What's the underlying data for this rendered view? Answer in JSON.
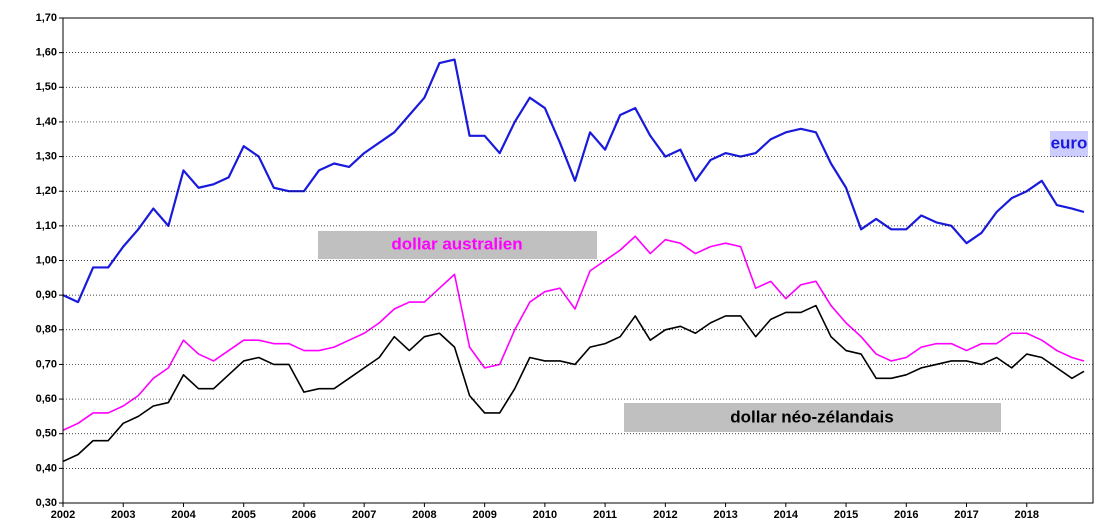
{
  "chart_data": {
    "type": "line",
    "x": [
      2002,
      2002.25,
      2002.5,
      2002.75,
      2003,
      2003.25,
      2003.5,
      2003.75,
      2004,
      2004.25,
      2004.5,
      2004.75,
      2005,
      2005.25,
      2005.5,
      2005.75,
      2006,
      2006.25,
      2006.5,
      2006.75,
      2007,
      2007.25,
      2007.5,
      2007.75,
      2008,
      2008.25,
      2008.5,
      2008.75,
      2009,
      2009.25,
      2009.5,
      2009.75,
      2010,
      2010.25,
      2010.5,
      2010.75,
      2011,
      2011.25,
      2011.5,
      2011.75,
      2012,
      2012.25,
      2012.5,
      2012.75,
      2013,
      2013.25,
      2013.5,
      2013.75,
      2014,
      2014.25,
      2014.5,
      2014.75,
      2015,
      2015.25,
      2015.5,
      2015.75,
      2016,
      2016.25,
      2016.5,
      2016.75,
      2017,
      2017.25,
      2017.5,
      2017.75,
      2018,
      2018.25,
      2018.5,
      2018.75,
      2018.95
    ],
    "series": [
      {
        "name": "euro",
        "color": "#1a1adc",
        "values": [
          0.9,
          0.88,
          0.98,
          0.98,
          1.04,
          1.09,
          1.15,
          1.1,
          1.26,
          1.21,
          1.22,
          1.24,
          1.33,
          1.3,
          1.21,
          1.2,
          1.2,
          1.26,
          1.28,
          1.27,
          1.31,
          1.34,
          1.37,
          1.42,
          1.47,
          1.57,
          1.58,
          1.36,
          1.36,
          1.31,
          1.4,
          1.47,
          1.44,
          1.34,
          1.23,
          1.37,
          1.32,
          1.42,
          1.44,
          1.36,
          1.3,
          1.32,
          1.23,
          1.29,
          1.31,
          1.3,
          1.31,
          1.35,
          1.37,
          1.38,
          1.37,
          1.28,
          1.21,
          1.09,
          1.12,
          1.09,
          1.09,
          1.13,
          1.11,
          1.1,
          1.05,
          1.08,
          1.14,
          1.18,
          1.2,
          1.23,
          1.16,
          1.15,
          1.14
        ]
      },
      {
        "name": "dollar australien",
        "color": "#ff00ff",
        "values": [
          0.51,
          0.53,
          0.56,
          0.56,
          0.58,
          0.61,
          0.66,
          0.69,
          0.77,
          0.73,
          0.71,
          0.74,
          0.77,
          0.77,
          0.76,
          0.76,
          0.74,
          0.74,
          0.75,
          0.77,
          0.79,
          0.82,
          0.86,
          0.88,
          0.88,
          0.92,
          0.96,
          0.75,
          0.69,
          0.7,
          0.8,
          0.88,
          0.91,
          0.92,
          0.86,
          0.97,
          1.0,
          1.03,
          1.07,
          1.02,
          1.06,
          1.05,
          1.02,
          1.04,
          1.05,
          1.04,
          0.92,
          0.94,
          0.89,
          0.93,
          0.94,
          0.87,
          0.82,
          0.78,
          0.73,
          0.71,
          0.72,
          0.75,
          0.76,
          0.76,
          0.74,
          0.76,
          0.76,
          0.79,
          0.79,
          0.77,
          0.74,
          0.72,
          0.71
        ]
      },
      {
        "name": "dollar néo-zélandais",
        "color": "#000000",
        "values": [
          0.42,
          0.44,
          0.48,
          0.48,
          0.53,
          0.55,
          0.58,
          0.59,
          0.67,
          0.63,
          0.63,
          0.67,
          0.71,
          0.72,
          0.7,
          0.7,
          0.62,
          0.63,
          0.63,
          0.66,
          0.69,
          0.72,
          0.78,
          0.74,
          0.78,
          0.79,
          0.75,
          0.61,
          0.56,
          0.56,
          0.63,
          0.72,
          0.71,
          0.71,
          0.7,
          0.75,
          0.76,
          0.78,
          0.84,
          0.77,
          0.8,
          0.81,
          0.79,
          0.82,
          0.84,
          0.84,
          0.78,
          0.83,
          0.85,
          0.85,
          0.87,
          0.78,
          0.74,
          0.73,
          0.66,
          0.66,
          0.67,
          0.69,
          0.7,
          0.71,
          0.71,
          0.7,
          0.72,
          0.69,
          0.73,
          0.72,
          0.69,
          0.66,
          0.68
        ]
      }
    ],
    "xlim": [
      2002,
      2019.1
    ],
    "xticks": [
      2002,
      2003,
      2004,
      2005,
      2006,
      2007,
      2008,
      2009,
      2010,
      2011,
      2012,
      2013,
      2014,
      2015,
      2016,
      2017,
      2018
    ],
    "ylim": [
      0.3,
      1.7
    ],
    "yticks": [
      {
        "value": 0.3,
        "label": "0,30"
      },
      {
        "value": 0.4,
        "label": "0,40"
      },
      {
        "value": 0.5,
        "label": "0,50"
      },
      {
        "value": 0.6,
        "label": "0,60"
      },
      {
        "value": 0.7,
        "label": "0,70"
      },
      {
        "value": 0.8,
        "label": "0,80"
      },
      {
        "value": 0.9,
        "label": "0,90"
      },
      {
        "value": 1.0,
        "label": "1,00"
      },
      {
        "value": 1.1,
        "label": "1,10"
      },
      {
        "value": 1.2,
        "label": "1,20"
      },
      {
        "value": 1.3,
        "label": "1,30"
      },
      {
        "value": 1.4,
        "label": "1,40"
      },
      {
        "value": 1.5,
        "label": "1,50"
      },
      {
        "value": 1.6,
        "label": "1,60"
      },
      {
        "value": 1.7,
        "label": "1,70"
      }
    ],
    "grid": true
  }
}
